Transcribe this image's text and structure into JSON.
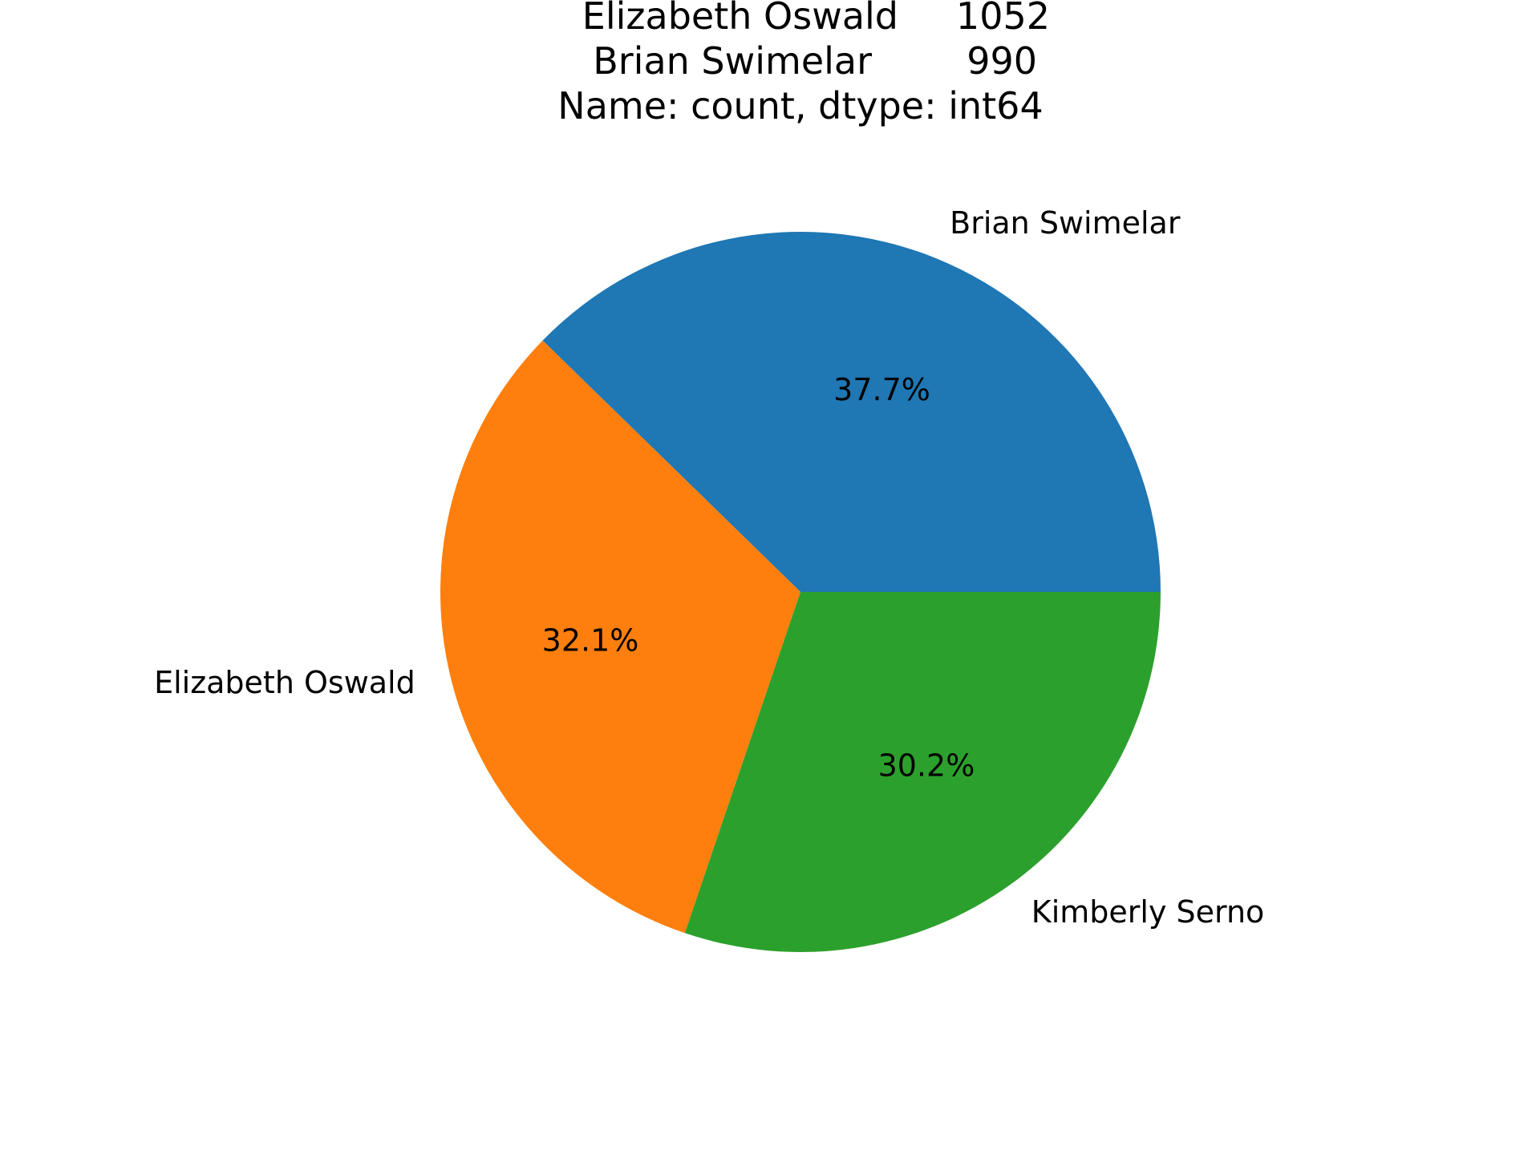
{
  "chart_data": {
    "type": "pie",
    "title_lines": [
      [
        "Elizabeth Oswald",
        "1052"
      ],
      [
        "Brian Swimelar",
        "990"
      ],
      [
        "Name: count, dtype: int64",
        ""
      ]
    ],
    "slices": [
      {
        "label": "Brian Swimelar",
        "percent": 37.7,
        "pct_label": "37.7%",
        "color": "#1f77b4"
      },
      {
        "label": "Elizabeth Oswald",
        "percent": 32.1,
        "pct_label": "32.1%",
        "color": "#ff7f0e"
      },
      {
        "label": "Kimberly Serno",
        "percent": 30.2,
        "pct_label": "30.2%",
        "color": "#2ca02c"
      }
    ],
    "start_angle_deg": 0,
    "direction": "counterclockwise",
    "legend": "none"
  }
}
